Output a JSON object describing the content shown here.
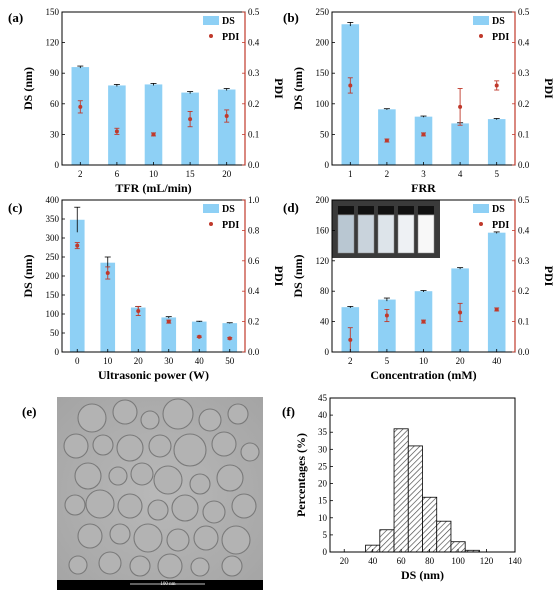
{
  "colors": {
    "bar": "#8ed0f5",
    "pdi": "#c0392b",
    "axis_right": "#c0392b",
    "hist_hatch": "#555555"
  },
  "scale_bar_text": "100 nm",
  "chart_data": [
    {
      "panel": "(a)",
      "type": "bar",
      "xlabel": "TFR (mL/min)",
      "ylabel": "DS (nm)",
      "y2label": "PDI",
      "categories": [
        "2",
        "6",
        "10",
        "15",
        "20"
      ],
      "ylim": [
        0,
        150
      ],
      "yticks": [
        "0",
        "30",
        "60",
        "90",
        "120",
        "150"
      ],
      "y2lim": [
        0,
        0.5
      ],
      "y2ticks": [
        "0.0",
        "0.1",
        "0.2",
        "0.3",
        "0.4",
        "0.5"
      ],
      "legend": [
        "DS",
        "PDI"
      ],
      "series": [
        {
          "name": "DS",
          "values": [
            96,
            78,
            79,
            71,
            74
          ],
          "errors": [
            1,
            1,
            1,
            1,
            1
          ]
        },
        {
          "name": "PDI",
          "values": [
            0.19,
            0.11,
            0.1,
            0.15,
            0.16
          ],
          "errors": [
            0.02,
            0.01,
            0.005,
            0.025,
            0.02
          ]
        }
      ]
    },
    {
      "panel": "(b)",
      "type": "bar",
      "xlabel": "FRR",
      "ylabel": "DS (nm)",
      "y2label": "PDI",
      "categories": [
        "1",
        "2",
        "3",
        "4",
        "5"
      ],
      "ylim": [
        0,
        250
      ],
      "yticks": [
        "0",
        "50",
        "100",
        "150",
        "200",
        "250"
      ],
      "y2lim": [
        0,
        0.5
      ],
      "y2ticks": [
        "0.0",
        "0.1",
        "0.2",
        "0.3",
        "0.4",
        "0.5"
      ],
      "legend": [
        "DS",
        "PDI"
      ],
      "series": [
        {
          "name": "DS",
          "values": [
            230,
            91,
            79,
            68,
            75
          ],
          "errors": [
            3,
            1,
            1,
            1,
            1
          ]
        },
        {
          "name": "PDI",
          "values": [
            0.26,
            0.08,
            0.1,
            0.19,
            0.26
          ],
          "errors": [
            0.025,
            0.005,
            0.005,
            0.06,
            0.015
          ]
        }
      ]
    },
    {
      "panel": "(c)",
      "type": "bar",
      "xlabel": "Ultrasonic power (W)",
      "ylabel": "DS (nm)",
      "y2label": "PDI",
      "categories": [
        "0",
        "10",
        "20",
        "30",
        "40",
        "50"
      ],
      "ylim": [
        0,
        400
      ],
      "yticks": [
        "0",
        "50",
        "100",
        "150",
        "200",
        "250",
        "300",
        "350",
        "400"
      ],
      "y2lim": [
        0,
        1.0
      ],
      "y2ticks": [
        "0.0",
        "0.2",
        "0.4",
        "0.6",
        "0.8",
        "1.0"
      ],
      "legend": [
        "DS",
        "PDI"
      ],
      "series": [
        {
          "name": "DS",
          "values": [
            348,
            235,
            117,
            91,
            80,
            76
          ],
          "errors": [
            33,
            15,
            3,
            2,
            1,
            1
          ]
        },
        {
          "name": "PDI",
          "values": [
            0.7,
            0.52,
            0.27,
            0.2,
            0.1,
            0.09
          ],
          "errors": [
            0.02,
            0.04,
            0.03,
            0.01,
            0.005,
            0.005
          ]
        }
      ]
    },
    {
      "panel": "(d)",
      "type": "bar",
      "xlabel": "Concentration (mM)",
      "ylabel": "DS (nm)",
      "y2label": "PDI",
      "categories": [
        "2",
        "5",
        "10",
        "20",
        "40"
      ],
      "ylim": [
        0,
        200
      ],
      "yticks": [
        "0",
        "40",
        "80",
        "120",
        "160",
        "200"
      ],
      "y2lim": [
        0,
        0.5
      ],
      "y2ticks": [
        "0.0",
        "0.1",
        "0.2",
        "0.3",
        "0.4",
        "0.5"
      ],
      "legend": [
        "DS",
        "PDI"
      ],
      "series": [
        {
          "name": "DS",
          "values": [
            59,
            69,
            80,
            110,
            157
          ],
          "errors": [
            1,
            2,
            1,
            1,
            1
          ]
        },
        {
          "name": "PDI",
          "values": [
            0.04,
            0.12,
            0.1,
            0.13,
            0.14
          ],
          "errors": [
            0.04,
            0.02,
            0.005,
            0.03,
            0.005
          ]
        }
      ]
    },
    {
      "panel": "(f)",
      "type": "bar",
      "xlabel": "DS (nm)",
      "ylabel": "Percentages (%)",
      "xlim": [
        10,
        140
      ],
      "xticks": [
        "20",
        "40",
        "60",
        "80",
        "100",
        "120",
        "140"
      ],
      "ylim": [
        0,
        45
      ],
      "yticks": [
        "0",
        "5",
        "10",
        "15",
        "20",
        "25",
        "30",
        "35",
        "40",
        "45"
      ],
      "bin_width": 10,
      "bins": [
        40,
        50,
        60,
        70,
        80,
        90,
        100,
        110
      ],
      "values": [
        2,
        6.5,
        36,
        31,
        16,
        9,
        3,
        0.5
      ]
    }
  ]
}
